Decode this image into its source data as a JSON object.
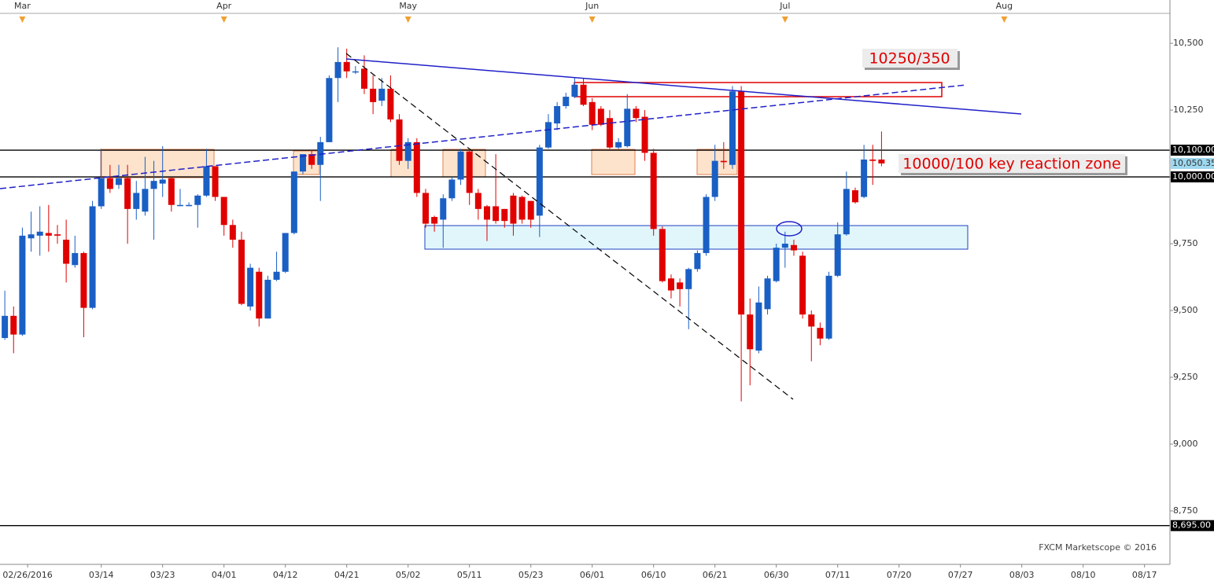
{
  "chart_data": {
    "type": "candlestick",
    "up_color": "#1a5fc4",
    "down_color": "#e00000",
    "xlim": [
      -0.55,
      132.9
    ],
    "ylim": [
      8550,
      10662
    ],
    "xticks": [
      {
        "value": 2.6,
        "label": "02/26/2016"
      },
      {
        "value": 11,
        "label": "03/14"
      },
      {
        "value": 18,
        "label": "03/23"
      },
      {
        "value": 25,
        "label": "04/01"
      },
      {
        "value": 32,
        "label": "04/12"
      },
      {
        "value": 39,
        "label": "04/21"
      },
      {
        "value": 46,
        "label": "05/02"
      },
      {
        "value": 53,
        "label": "05/11"
      },
      {
        "value": 60,
        "label": "05/23"
      },
      {
        "value": 67,
        "label": "06/01"
      },
      {
        "value": 74,
        "label": "06/10"
      },
      {
        "value": 81,
        "label": "06/21"
      },
      {
        "value": 88,
        "label": "06/30"
      },
      {
        "value": 95,
        "label": "07/11"
      },
      {
        "value": 102,
        "label": "07/20"
      },
      {
        "value": 109,
        "label": "07/27"
      },
      {
        "value": 116,
        "label": "08/03"
      },
      {
        "value": 123,
        "label": "08/10"
      },
      {
        "value": 130,
        "label": "08/17"
      }
    ],
    "month_ticks": [
      {
        "value": 2,
        "label": "Mar"
      },
      {
        "value": 25,
        "label": "Apr"
      },
      {
        "value": 46,
        "label": "May"
      },
      {
        "value": 67,
        "label": "Jun"
      },
      {
        "value": 89,
        "label": "Jul"
      },
      {
        "value": 114,
        "label": "Aug"
      }
    ],
    "yticks": [
      {
        "value": 8750,
        "label": "8,750"
      },
      {
        "value": 9000,
        "label": "9,000"
      },
      {
        "value": 9250,
        "label": "9,250"
      },
      {
        "value": 9500,
        "label": "9,500"
      },
      {
        "value": 9750,
        "label": "9,750"
      },
      {
        "value": 10000,
        "label": "10,000"
      },
      {
        "value": 10250,
        "label": "10,250"
      },
      {
        "value": 10500,
        "label": "10,500"
      }
    ],
    "price_lines": [
      {
        "value": 10100,
        "label": "10,100.00"
      },
      {
        "value": 10000,
        "label": "10,000.00"
      },
      {
        "value": 8695,
        "label": "8,695.00"
      }
    ],
    "last_price": {
      "value": 10050.35,
      "label": "10,050.35"
    },
    "annotations": [
      "10250/350",
      "10000/100 key reaction zone"
    ],
    "watermark": "FXCM Marketscope © 2016",
    "open": [
      9397,
      9480,
      9410,
      9770,
      9780,
      9790,
      9785,
      9765,
      9670,
      9715,
      9510,
      9890,
      9995,
      9970,
      9995,
      9880,
      9870,
      9955,
      9975,
      9995,
      9895,
      9895,
      9895,
      9930,
      10040,
      9925,
      9820,
      9765,
      9515,
      9645,
      9470,
      9615,
      9645,
      9790,
      10020,
      10085,
      10045,
      10130,
      10370,
      10430,
      10395,
      10405,
      10330,
      10285,
      10330,
      10215,
      10060,
      10130,
      9940,
      9850,
      9840,
      9920,
      9990,
      10095,
      9940,
      9890,
      9890,
      9880,
      9930,
      9925,
      9910,
      9855,
      10110,
      10200,
      10265,
      10300,
      10345,
      10280,
      10255,
      10220,
      10110,
      10115,
      10255,
      10225,
      10090,
      9805,
      9620,
      9605,
      9580,
      9655,
      9715,
      9925,
      10060,
      10045,
      10320,
      9485,
      9350,
      9505,
      9610,
      9735,
      9745,
      9705,
      9485,
      9435,
      9395,
      9630,
      9785,
      9950,
      9925,
      10065,
      10065
    ],
    "high": [
      9574,
      9515,
      9810,
      9870,
      9890,
      9895,
      9820,
      9840,
      9780,
      9720,
      9910,
      10105,
      10045,
      10045,
      10045,
      9985,
      10075,
      10060,
      10115,
      10000,
      9955,
      9905,
      9935,
      10105,
      10040,
      9925,
      9840,
      9795,
      9675,
      9660,
      9630,
      9720,
      9790,
      10020,
      10085,
      10100,
      10150,
      10380,
      10485,
      10480,
      10415,
      10455,
      10380,
      10370,
      10380,
      10235,
      10145,
      10145,
      9955,
      9855,
      9935,
      10000,
      10105,
      10105,
      9955,
      9895,
      10085,
      9880,
      9940,
      9930,
      9910,
      10120,
      10235,
      10280,
      10315,
      10370,
      10370,
      10295,
      10265,
      10250,
      10145,
      10310,
      10265,
      10250,
      10105,
      9815,
      9635,
      9620,
      9660,
      9725,
      9935,
      10120,
      10130,
      10340,
      10340,
      9545,
      9590,
      9630,
      9750,
      9795,
      9765,
      9720,
      9500,
      9455,
      9645,
      9830,
      10020,
      9960,
      10120,
      10120,
      10170
    ],
    "low": [
      9390,
      9340,
      9405,
      9720,
      9705,
      9720,
      9750,
      9605,
      9660,
      9400,
      9505,
      9880,
      9940,
      9955,
      9750,
      9840,
      9855,
      9765,
      9925,
      9870,
      9890,
      9890,
      9810,
      9925,
      9910,
      9780,
      9735,
      9520,
      9500,
      9440,
      9470,
      9610,
      9640,
      9785,
      10010,
      10030,
      9910,
      10130,
      10280,
      10370,
      10385,
      10310,
      10235,
      10265,
      10205,
      10045,
      10030,
      9925,
      9810,
      9795,
      9735,
      9910,
      9970,
      9895,
      9840,
      9760,
      9825,
      9810,
      9780,
      9825,
      9810,
      9775,
      10105,
      10175,
      10255,
      10295,
      10265,
      10175,
      10190,
      10105,
      10105,
      10110,
      10205,
      10060,
      9780,
      9605,
      9545,
      9515,
      9430,
      9645,
      9705,
      9910,
      10030,
      10030,
      9160,
      9220,
      9340,
      9485,
      9605,
      9660,
      9705,
      9470,
      9310,
      9370,
      9390,
      9625,
      9780,
      9900,
      9920,
      9970,
      10040
    ],
    "close": [
      9480,
      9410,
      9780,
      9785,
      9795,
      9780,
      9780,
      9675,
      9715,
      9510,
      9890,
      9995,
      9955,
      9995,
      9880,
      9940,
      9955,
      9985,
      9990,
      9895,
      9895,
      9895,
      9930,
      10040,
      9925,
      9820,
      9765,
      9525,
      9660,
      9470,
      9615,
      9645,
      9790,
      10020,
      10085,
      10045,
      10130,
      10370,
      10430,
      10395,
      10395,
      10330,
      10280,
      10330,
      10215,
      10060,
      10130,
      9940,
      9825,
      9825,
      9920,
      9990,
      10095,
      9940,
      9880,
      9840,
      9835,
      9835,
      9825,
      9840,
      9840,
      10110,
      10205,
      10265,
      10300,
      10345,
      10270,
      10195,
      10195,
      10110,
      10130,
      10255,
      10220,
      10090,
      9805,
      9610,
      9575,
      9580,
      9655,
      9715,
      9925,
      10060,
      10055,
      10320,
      9485,
      9355,
      9530,
      9620,
      9735,
      9750,
      9725,
      9485,
      9440,
      9395,
      9630,
      9785,
      9955,
      9905,
      10065,
      10060,
      10050.35
    ]
  }
}
